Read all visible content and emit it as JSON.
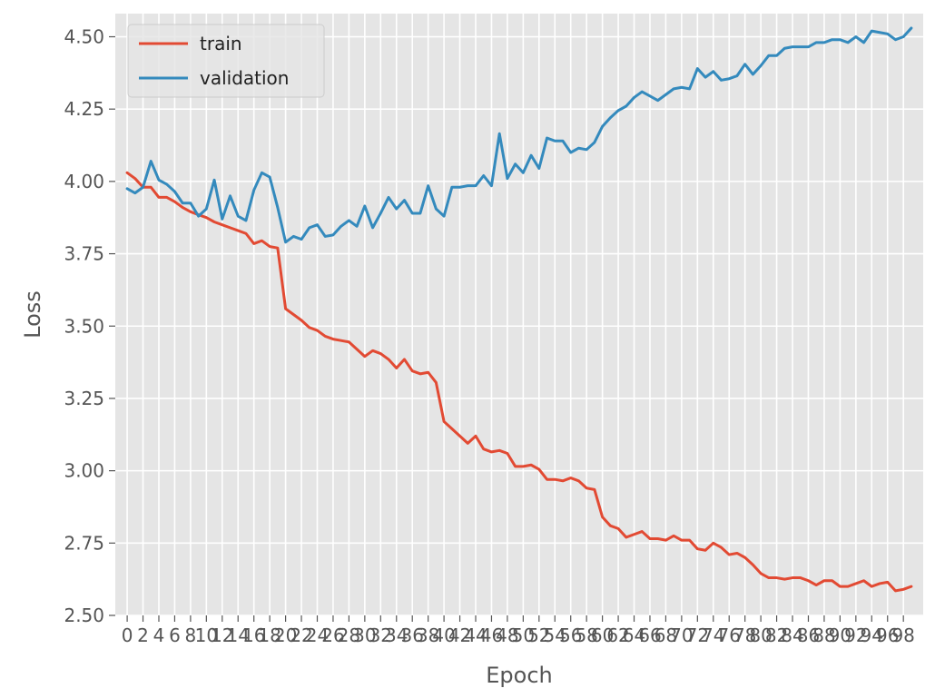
{
  "chart_data": {
    "type": "line",
    "xlabel": "Epoch",
    "ylabel": "Loss",
    "xlim": [
      -1.5,
      100.5
    ],
    "ylim": [
      2.5,
      4.58
    ],
    "yticks": [
      2.5,
      2.75,
      3.0,
      3.25,
      3.5,
      3.75,
      4.0,
      4.25,
      4.5
    ],
    "ytick_labels": [
      "2.50",
      "2.75",
      "3.00",
      "3.25",
      "3.50",
      "3.75",
      "4.00",
      "4.25",
      "4.50"
    ],
    "xticks": [
      0,
      2,
      4,
      6,
      8,
      10,
      12,
      14,
      16,
      18,
      20,
      22,
      24,
      26,
      28,
      30,
      32,
      34,
      36,
      38,
      40,
      42,
      44,
      46,
      48,
      50,
      52,
      54,
      56,
      58,
      60,
      62,
      64,
      66,
      68,
      70,
      72,
      74,
      76,
      78,
      80,
      82,
      84,
      86,
      88,
      90,
      92,
      94,
      96,
      98
    ],
    "xtick_labels": [
      "0",
      "2",
      "4",
      "6",
      "8",
      "10",
      "12",
      "14",
      "16",
      "18",
      "20",
      "22",
      "24",
      "26",
      "28",
      "30",
      "32",
      "34",
      "36",
      "38",
      "40",
      "42",
      "44",
      "46",
      "48",
      "50",
      "52",
      "54",
      "56",
      "58",
      "60",
      "62",
      "64",
      "66",
      "68",
      "70",
      "72",
      "74",
      "76",
      "78",
      "80",
      "82",
      "84",
      "86",
      "88",
      "90",
      "92",
      "94",
      "96",
      "98"
    ],
    "grid": true,
    "legend_position": "top-left",
    "x": [
      0,
      1,
      2,
      3,
      4,
      5,
      6,
      7,
      8,
      9,
      10,
      11,
      12,
      13,
      14,
      15,
      16,
      17,
      18,
      19,
      20,
      21,
      22,
      23,
      24,
      25,
      26,
      27,
      28,
      29,
      30,
      31,
      32,
      33,
      34,
      35,
      36,
      37,
      38,
      39,
      40,
      41,
      42,
      43,
      44,
      45,
      46,
      47,
      48,
      49,
      50,
      51,
      52,
      53,
      54,
      55,
      56,
      57,
      58,
      59,
      60,
      61,
      62,
      63,
      64,
      65,
      66,
      67,
      68,
      69,
      70,
      71,
      72,
      73,
      74,
      75,
      76,
      77,
      78,
      79,
      80,
      81,
      82,
      83,
      84,
      85,
      86,
      87,
      88,
      89,
      90,
      91,
      92,
      93,
      94,
      95,
      96,
      97,
      98,
      99
    ],
    "series": [
      {
        "name": "train",
        "color": "#E24A33",
        "values": [
          4.03,
          4.01,
          3.98,
          3.98,
          3.945,
          3.945,
          3.93,
          3.91,
          3.895,
          3.885,
          3.875,
          3.86,
          3.85,
          3.84,
          3.83,
          3.82,
          3.785,
          3.795,
          3.775,
          3.77,
          3.56,
          3.54,
          3.52,
          3.495,
          3.485,
          3.465,
          3.455,
          3.45,
          3.445,
          3.42,
          3.395,
          3.415,
          3.405,
          3.385,
          3.355,
          3.385,
          3.345,
          3.335,
          3.34,
          3.305,
          3.17,
          3.145,
          3.12,
          3.095,
          3.12,
          3.075,
          3.065,
          3.07,
          3.06,
          3.015,
          3.015,
          3.02,
          3.005,
          2.97,
          2.97,
          2.965,
          2.975,
          2.965,
          2.94,
          2.935,
          2.84,
          2.81,
          2.8,
          2.77,
          2.78,
          2.79,
          2.765,
          2.765,
          2.76,
          2.775,
          2.76,
          2.76,
          2.73,
          2.725,
          2.75,
          2.735,
          2.71,
          2.715,
          2.7,
          2.675,
          2.645,
          2.63,
          2.63,
          2.625,
          2.63,
          2.63,
          2.62,
          2.605,
          2.62,
          2.62,
          2.6,
          2.6,
          2.61,
          2.62,
          2.6,
          2.61,
          2.615,
          2.585,
          2.59,
          2.6
        ]
      },
      {
        "name": "validation",
        "color": "#348ABD",
        "values": [
          3.975,
          3.96,
          3.98,
          4.07,
          4.005,
          3.99,
          3.965,
          3.925,
          3.925,
          3.88,
          3.905,
          4.005,
          3.87,
          3.95,
          3.88,
          3.865,
          3.97,
          4.03,
          4.015,
          3.91,
          3.79,
          3.81,
          3.8,
          3.84,
          3.85,
          3.81,
          3.815,
          3.845,
          3.865,
          3.845,
          3.915,
          3.84,
          3.89,
          3.945,
          3.905,
          3.935,
          3.89,
          3.89,
          3.985,
          3.905,
          3.88,
          3.98,
          3.98,
          3.985,
          3.985,
          4.02,
          3.985,
          4.165,
          4.01,
          4.06,
          4.03,
          4.09,
          4.045,
          4.15,
          4.14,
          4.14,
          4.1,
          4.115,
          4.11,
          4.135,
          4.19,
          4.22,
          4.245,
          4.26,
          4.29,
          4.31,
          4.295,
          4.28,
          4.3,
          4.32,
          4.325,
          4.32,
          4.39,
          4.36,
          4.38,
          4.35,
          4.355,
          4.365,
          4.405,
          4.37,
          4.4,
          4.435,
          4.435,
          4.46,
          4.465,
          4.465,
          4.465,
          4.48,
          4.48,
          4.49,
          4.49,
          4.48,
          4.5,
          4.48,
          4.52,
          4.515,
          4.51,
          4.49,
          4.5,
          4.53
        ]
      }
    ]
  }
}
